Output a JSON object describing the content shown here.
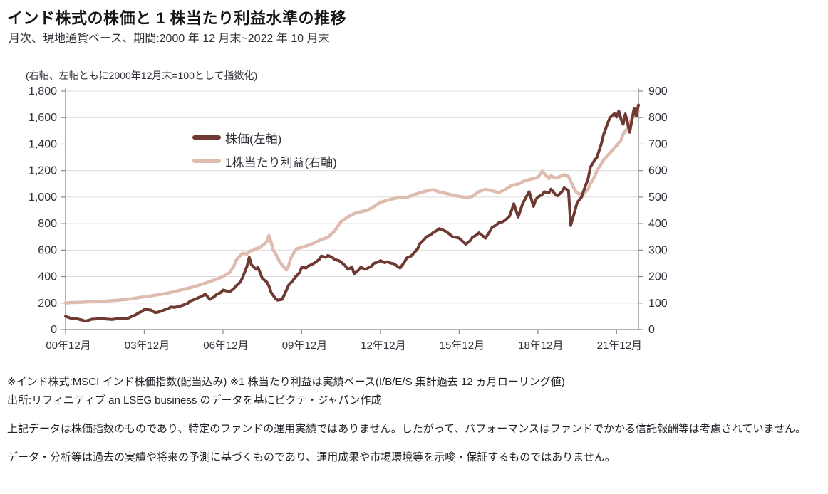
{
  "header": {
    "title": "インド株式の株価と 1 株当たり利益水準の推移",
    "subtitle": "月次、現地通貨ベース、期間:2000 年 12 月末~2022 年 10 月末"
  },
  "chart": {
    "note": "(右軸、左軸ともに2000年12月末=100として指数化)",
    "legend": [
      {
        "label": "株価(左軸)",
        "color": "#6e3a32"
      },
      {
        "label": "1株当たり利益(右軸)",
        "color": "#dfbcb0"
      }
    ]
  },
  "chart_data": {
    "type": "line",
    "title": "インド株式の株価と1株当たり利益水準の推移",
    "subtitle": "月次、現地通貨ベース、期間:2000年12月末~2022年10月末",
    "note": "右軸、左軸ともに2000年12月末=100として指数化",
    "x_axis": {
      "start": "2000-12",
      "end": "2022-10",
      "range_months": [
        0,
        262
      ],
      "tick_months": [
        0,
        36,
        72,
        108,
        144,
        180,
        216,
        252
      ],
      "tick_labels": [
        "00年12月",
        "03年12月",
        "06年12月",
        "09年12月",
        "12年12月",
        "15年12月",
        "18年12月",
        "21年12月"
      ]
    },
    "left_axis": {
      "range": [
        0,
        1800
      ],
      "step": 200,
      "ticks": [
        "0",
        "200",
        "400",
        "600",
        "800",
        "1,000",
        "1,200",
        "1,400",
        "1,600",
        "1,800"
      ]
    },
    "right_axis": {
      "range": [
        0,
        900
      ],
      "step": 100,
      "ticks": [
        "0",
        "100",
        "200",
        "300",
        "400",
        "500",
        "600",
        "700",
        "800",
        "900"
      ]
    },
    "grid": "horizontal",
    "legend_position": "inside-top-left",
    "series": [
      {
        "name": "株価(左軸)",
        "axis": "left",
        "color": "#6e3a32",
        "points": [
          [
            0,
            100
          ],
          [
            2,
            88
          ],
          [
            3,
            80
          ],
          [
            5,
            83
          ],
          [
            6,
            78
          ],
          [
            8,
            70
          ],
          [
            9,
            64
          ],
          [
            11,
            72
          ],
          [
            12,
            78
          ],
          [
            14,
            80
          ],
          [
            15,
            83
          ],
          [
            17,
            84
          ],
          [
            18,
            80
          ],
          [
            20,
            78
          ],
          [
            21,
            76
          ],
          [
            23,
            80
          ],
          [
            24,
            84
          ],
          [
            26,
            82
          ],
          [
            27,
            80
          ],
          [
            29,
            88
          ],
          [
            30,
            97
          ],
          [
            32,
            110
          ],
          [
            33,
            122
          ],
          [
            35,
            138
          ],
          [
            36,
            152
          ],
          [
            38,
            150
          ],
          [
            39,
            148
          ],
          [
            41,
            128
          ],
          [
            42,
            130
          ],
          [
            44,
            140
          ],
          [
            45,
            148
          ],
          [
            47,
            158
          ],
          [
            48,
            170
          ],
          [
            50,
            168
          ],
          [
            51,
            172
          ],
          [
            53,
            180
          ],
          [
            54,
            186
          ],
          [
            56,
            200
          ],
          [
            57,
            215
          ],
          [
            59,
            228
          ],
          [
            60,
            235
          ],
          [
            62,
            250
          ],
          [
            63,
            258
          ],
          [
            64,
            268
          ],
          [
            66,
            228
          ],
          [
            68,
            248
          ],
          [
            69,
            264
          ],
          [
            71,
            280
          ],
          [
            72,
            298
          ],
          [
            74,
            290
          ],
          [
            75,
            285
          ],
          [
            77,
            310
          ],
          [
            78,
            330
          ],
          [
            80,
            360
          ],
          [
            81,
            395
          ],
          [
            83,
            480
          ],
          [
            84,
            545
          ],
          [
            85,
            490
          ],
          [
            87,
            455
          ],
          [
            88,
            470
          ],
          [
            90,
            385
          ],
          [
            92,
            360
          ],
          [
            93,
            330
          ],
          [
            94,
            280
          ],
          [
            96,
            235
          ],
          [
            97,
            222
          ],
          [
            99,
            228
          ],
          [
            100,
            260
          ],
          [
            102,
            335
          ],
          [
            104,
            370
          ],
          [
            105,
            395
          ],
          [
            107,
            430
          ],
          [
            108,
            470
          ],
          [
            110,
            465
          ],
          [
            111,
            480
          ],
          [
            113,
            495
          ],
          [
            114,
            505
          ],
          [
            116,
            530
          ],
          [
            117,
            555
          ],
          [
            119,
            545
          ],
          [
            120,
            560
          ],
          [
            122,
            545
          ],
          [
            123,
            530
          ],
          [
            125,
            520
          ],
          [
            126,
            510
          ],
          [
            128,
            480
          ],
          [
            129,
            455
          ],
          [
            131,
            470
          ],
          [
            132,
            420
          ],
          [
            134,
            450
          ],
          [
            135,
            470
          ],
          [
            137,
            455
          ],
          [
            138,
            462
          ],
          [
            140,
            480
          ],
          [
            141,
            500
          ],
          [
            143,
            510
          ],
          [
            144,
            520
          ],
          [
            146,
            505
          ],
          [
            147,
            512
          ],
          [
            149,
            500
          ],
          [
            150,
            498
          ],
          [
            152,
            475
          ],
          [
            153,
            465
          ],
          [
            155,
            510
          ],
          [
            156,
            540
          ],
          [
            158,
            555
          ],
          [
            159,
            572
          ],
          [
            161,
            610
          ],
          [
            162,
            648
          ],
          [
            164,
            680
          ],
          [
            165,
            700
          ],
          [
            167,
            715
          ],
          [
            168,
            730
          ],
          [
            170,
            750
          ],
          [
            171,
            762
          ],
          [
            173,
            748
          ],
          [
            174,
            740
          ],
          [
            176,
            715
          ],
          [
            177,
            700
          ],
          [
            179,
            695
          ],
          [
            180,
            690
          ],
          [
            182,
            660
          ],
          [
            183,
            645
          ],
          [
            185,
            670
          ],
          [
            186,
            695
          ],
          [
            188,
            715
          ],
          [
            189,
            730
          ],
          [
            191,
            705
          ],
          [
            192,
            690
          ],
          [
            194,
            740
          ],
          [
            195,
            770
          ],
          [
            197,
            790
          ],
          [
            198,
            805
          ],
          [
            200,
            815
          ],
          [
            201,
            825
          ],
          [
            203,
            855
          ],
          [
            204,
            900
          ],
          [
            205,
            950
          ],
          [
            207,
            850
          ],
          [
            209,
            950
          ],
          [
            210,
            980
          ],
          [
            212,
            1040
          ],
          [
            214,
            930
          ],
          [
            215,
            980
          ],
          [
            216,
            1000
          ],
          [
            218,
            1020
          ],
          [
            219,
            1040
          ],
          [
            221,
            1030
          ],
          [
            222,
            1060
          ],
          [
            224,
            1020
          ],
          [
            225,
            1010
          ],
          [
            227,
            1040
          ],
          [
            228,
            1070
          ],
          [
            230,
            1050
          ],
          [
            231,
            786
          ],
          [
            233,
            900
          ],
          [
            234,
            960
          ],
          [
            236,
            1000
          ],
          [
            237,
            1050
          ],
          [
            239,
            1140
          ],
          [
            240,
            1225
          ],
          [
            242,
            1280
          ],
          [
            243,
            1300
          ],
          [
            245,
            1400
          ],
          [
            246,
            1470
          ],
          [
            248,
            1560
          ],
          [
            249,
            1600
          ],
          [
            251,
            1630
          ],
          [
            252,
            1605
          ],
          [
            253,
            1650
          ],
          [
            254,
            1590
          ],
          [
            255,
            1550
          ],
          [
            256,
            1627
          ],
          [
            257,
            1560
          ],
          [
            258,
            1490
          ],
          [
            259,
            1580
          ],
          [
            260,
            1670
          ],
          [
            261,
            1610
          ],
          [
            262,
            1695
          ]
        ]
      },
      {
        "name": "1株当たり利益(右軸)",
        "axis": "right",
        "color": "#dfbcb0",
        "points": [
          [
            0,
            100
          ],
          [
            3,
            102
          ],
          [
            6,
            103
          ],
          [
            9,
            104
          ],
          [
            12,
            105
          ],
          [
            15,
            106
          ],
          [
            18,
            107
          ],
          [
            21,
            109
          ],
          [
            24,
            111
          ],
          [
            27,
            113
          ],
          [
            30,
            116
          ],
          [
            33,
            120
          ],
          [
            36,
            124
          ],
          [
            39,
            127
          ],
          [
            42,
            131
          ],
          [
            45,
            135
          ],
          [
            48,
            140
          ],
          [
            51,
            146
          ],
          [
            54,
            152
          ],
          [
            57,
            158
          ],
          [
            60,
            165
          ],
          [
            63,
            173
          ],
          [
            66,
            181
          ],
          [
            69,
            190
          ],
          [
            72,
            200
          ],
          [
            75,
            215
          ],
          [
            77,
            240
          ],
          [
            78,
            262
          ],
          [
            80,
            280
          ],
          [
            81,
            288
          ],
          [
            83,
            285
          ],
          [
            84,
            295
          ],
          [
            86,
            300
          ],
          [
            87,
            305
          ],
          [
            89,
            310
          ],
          [
            90,
            318
          ],
          [
            92,
            330
          ],
          [
            93,
            355
          ],
          [
            94,
            330
          ],
          [
            95,
            300
          ],
          [
            96,
            288
          ],
          [
            98,
            255
          ],
          [
            99,
            245
          ],
          [
            101,
            225
          ],
          [
            102,
            240
          ],
          [
            103,
            270
          ],
          [
            105,
            298
          ],
          [
            106,
            306
          ],
          [
            108,
            310
          ],
          [
            111,
            318
          ],
          [
            114,
            328
          ],
          [
            117,
            340
          ],
          [
            120,
            348
          ],
          [
            123,
            372
          ],
          [
            126,
            408
          ],
          [
            129,
            425
          ],
          [
            132,
            438
          ],
          [
            135,
            445
          ],
          [
            138,
            450
          ],
          [
            141,
            464
          ],
          [
            144,
            480
          ],
          [
            147,
            488
          ],
          [
            150,
            494
          ],
          [
            153,
            500
          ],
          [
            156,
            498
          ],
          [
            159,
            508
          ],
          [
            162,
            516
          ],
          [
            165,
            523
          ],
          [
            168,
            528
          ],
          [
            171,
            519
          ],
          [
            174,
            514
          ],
          [
            177,
            507
          ],
          [
            180,
            503
          ],
          [
            183,
            499
          ],
          [
            186,
            502
          ],
          [
            189,
            521
          ],
          [
            192,
            529
          ],
          [
            195,
            524
          ],
          [
            198,
            517
          ],
          [
            201,
            528
          ],
          [
            204,
            544
          ],
          [
            207,
            549
          ],
          [
            210,
            562
          ],
          [
            213,
            568
          ],
          [
            216,
            574
          ],
          [
            218,
            598
          ],
          [
            219,
            588
          ],
          [
            221,
            570
          ],
          [
            222,
            580
          ],
          [
            224,
            572
          ],
          [
            225,
            574
          ],
          [
            227,
            580
          ],
          [
            228,
            585
          ],
          [
            230,
            578
          ],
          [
            231,
            560
          ],
          [
            233,
            525
          ],
          [
            234,
            515
          ],
          [
            236,
            509
          ],
          [
            237,
            512
          ],
          [
            239,
            530
          ],
          [
            240,
            550
          ],
          [
            242,
            578
          ],
          [
            243,
            600
          ],
          [
            245,
            625
          ],
          [
            246,
            640
          ],
          [
            248,
            658
          ],
          [
            249,
            667
          ],
          [
            251,
            685
          ],
          [
            252,
            694
          ],
          [
            254,
            715
          ],
          [
            255,
            738
          ],
          [
            257,
            760
          ],
          [
            258,
            786
          ],
          [
            260,
            805
          ],
          [
            261,
            815
          ],
          [
            262,
            822
          ]
        ]
      }
    ],
    "colors": {
      "grid": "#dcdcdc",
      "axis": "#8a8a8a",
      "tick_text": "#32323c"
    }
  },
  "footnotes": {
    "note1": "※インド株式:MSCI インド株価指数(配当込み) ※1 株当たり利益は実績ベース(I/B/E/S 集計過去 12 ヵ月ローリング値)",
    "note2": "出所:リフィニティブ an LSEG business のデータを基にピクテ・ジャパン作成",
    "para1": "上記データは株価指数のものであり、特定のファンドの運用実績ではありません。したがって、パフォーマンスはファンドでかかる信託報酬等は考慮されていません。",
    "para2": "データ・分析等は過去の実績や将来の予測に基づくものであり、運用成果や市場環境等を示唆・保証するものではありません。"
  }
}
